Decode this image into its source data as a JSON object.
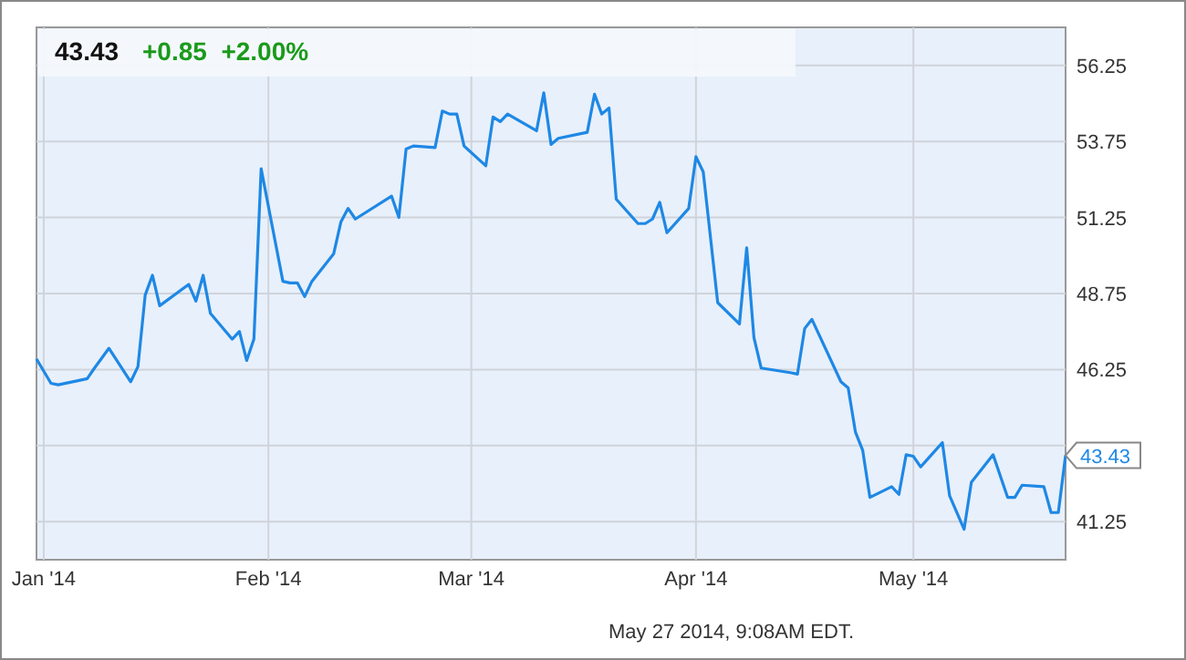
{
  "chart_data": {
    "type": "line",
    "title": "43.43",
    "subtitle": "+0.85  +2.00%",
    "x": [
      "2013-12-31",
      "2014-01-02",
      "2014-01-03",
      "2014-01-06",
      "2014-01-07",
      "2014-01-08",
      "2014-01-10",
      "2014-01-13",
      "2014-01-14",
      "2014-01-15",
      "2014-01-16",
      "2014-01-17",
      "2014-01-21",
      "2014-01-22",
      "2014-01-23",
      "2014-01-24",
      "2014-01-27",
      "2014-01-28",
      "2014-01-29",
      "2014-01-30",
      "2014-01-31",
      "2014-02-03",
      "2014-02-04",
      "2014-02-05",
      "2014-02-06",
      "2014-02-07",
      "2014-02-10",
      "2014-02-11",
      "2014-02-12",
      "2014-02-13",
      "2014-02-18",
      "2014-02-19",
      "2014-02-20",
      "2014-02-21",
      "2014-02-24",
      "2014-02-25",
      "2014-02-26",
      "2014-02-27",
      "2014-02-28",
      "2014-03-03",
      "2014-03-04",
      "2014-03-05",
      "2014-03-06",
      "2014-03-10",
      "2014-03-11",
      "2014-03-12",
      "2014-03-13",
      "2014-03-17",
      "2014-03-18",
      "2014-03-19",
      "2014-03-20",
      "2014-03-21",
      "2014-03-24",
      "2014-03-25",
      "2014-03-26",
      "2014-03-27",
      "2014-03-28",
      "2014-03-31",
      "2014-04-01",
      "2014-04-02",
      "2014-04-04",
      "2014-04-07",
      "2014-04-08",
      "2014-04-09",
      "2014-04-10",
      "2014-04-14",
      "2014-04-15",
      "2014-04-16",
      "2014-04-17",
      "2014-04-21",
      "2014-04-22",
      "2014-04-23",
      "2014-04-24",
      "2014-04-25",
      "2014-04-28",
      "2014-04-29",
      "2014-04-30",
      "2014-05-01",
      "2014-05-02",
      "2014-05-05",
      "2014-05-06",
      "2014-05-08",
      "2014-05-09",
      "2014-05-12",
      "2014-05-14",
      "2014-05-15",
      "2014-05-16",
      "2014-05-19",
      "2014-05-20",
      "2014-05-21",
      "2014-05-22"
    ],
    "series": [
      {
        "color": "#1e88e5",
        "values": [
          46.6,
          45.8,
          45.75,
          45.9,
          45.95,
          46.3,
          46.95,
          45.85,
          46.35,
          48.7,
          49.35,
          48.35,
          49.05,
          48.5,
          49.35,
          48.1,
          47.25,
          47.5,
          46.55,
          47.25,
          52.85,
          49.15,
          49.1,
          49.1,
          48.65,
          49.15,
          50.05,
          51.1,
          51.55,
          51.2,
          51.95,
          51.25,
          53.5,
          53.6,
          53.55,
          54.75,
          54.65,
          54.65,
          53.6,
          52.95,
          54.55,
          54.4,
          54.65,
          54.1,
          55.35,
          53.65,
          53.85,
          54.05,
          55.3,
          54.65,
          54.85,
          51.85,
          51.05,
          51.05,
          51.2,
          51.75,
          50.75,
          51.55,
          53.25,
          52.75,
          48.45,
          47.75,
          50.25,
          47.3,
          46.3,
          46.15,
          46.1,
          47.6,
          47.9,
          45.85,
          45.65,
          44.2,
          43.6,
          42.05,
          42.4,
          42.15,
          43.45,
          43.4,
          43.05,
          43.85,
          42.1,
          41.0,
          42.55,
          43.45,
          42.05,
          42.05,
          42.45,
          42.4,
          41.55,
          41.55,
          43.43
        ]
      }
    ],
    "xlim": [
      "2013-12-31",
      "2014-05-22"
    ],
    "xticks": [
      {
        "value": "2014-01-01",
        "label": "Jan '14"
      },
      {
        "value": "2014-02-01",
        "label": "Feb '14"
      },
      {
        "value": "2014-03-01",
        "label": "Mar '14"
      },
      {
        "value": "2014-04-01",
        "label": "Apr '14"
      },
      {
        "value": "2014-05-01",
        "label": "May '14"
      }
    ],
    "ylim": [
      40,
      57.5
    ],
    "yticks": [
      41.25,
      {
        "value": 43.75,
        "label": null
      },
      46.25,
      48.75,
      51.25,
      53.75,
      56.25
    ],
    "grid": true,
    "marker": "none",
    "line_style": "solid",
    "annotations": [
      {
        "text": "43.43",
        "x": "2014-05-22",
        "y": 43.43
      },
      "May 27 2014, 9:08AM EDT."
    ]
  }
}
